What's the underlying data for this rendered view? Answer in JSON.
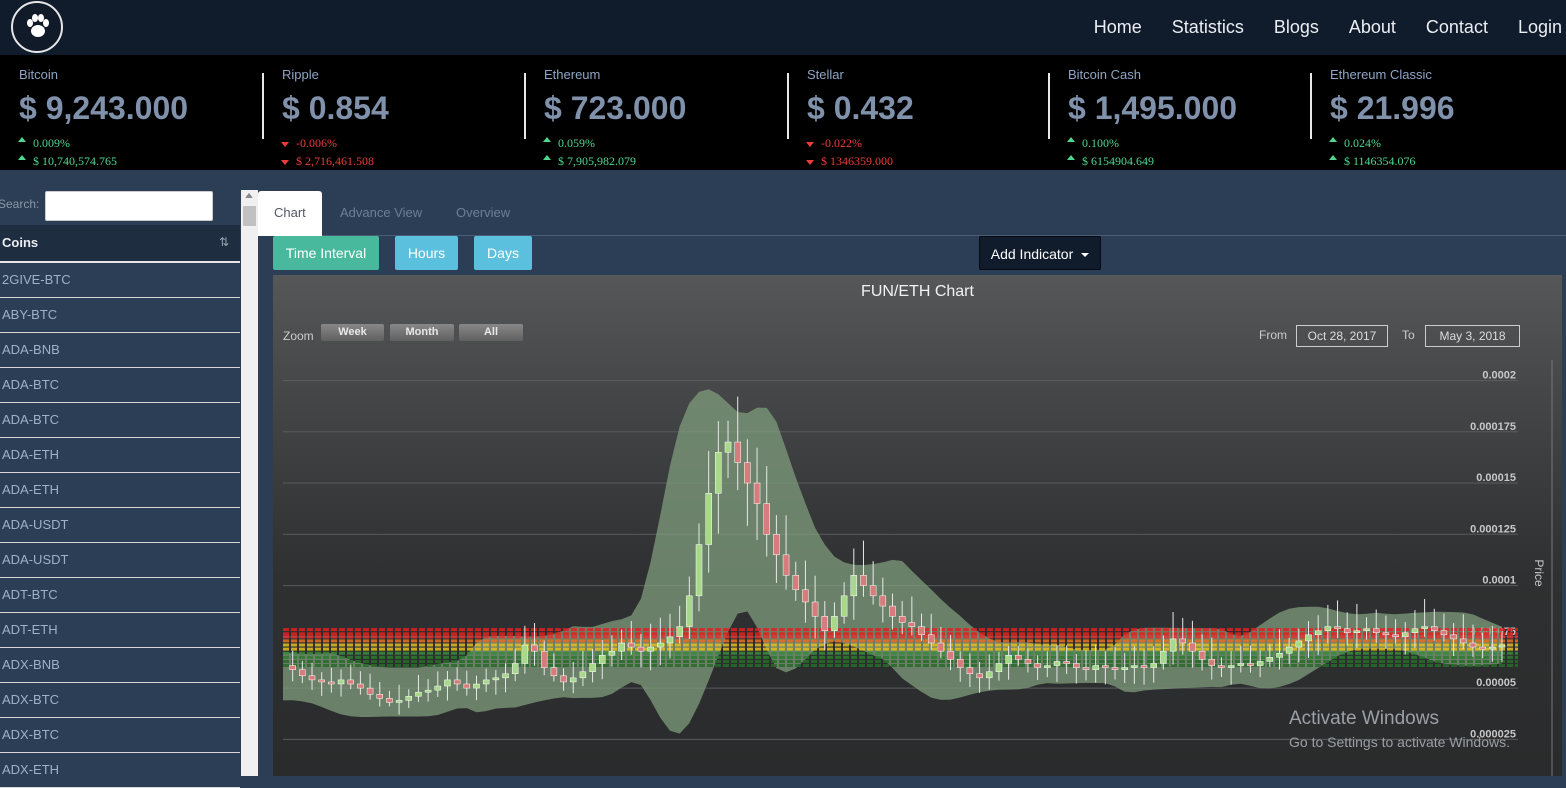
{
  "nav": {
    "links": [
      "Home",
      "Statistics",
      "Blogs",
      "About",
      "Contact",
      "Login"
    ]
  },
  "ticker": [
    {
      "name": "Bitcoin",
      "price": "$ 9,243.000",
      "change": "0.009%",
      "change_dir": "up",
      "volume": "$ 10,740,574.765",
      "volume_dir": "up"
    },
    {
      "name": "Ripple",
      "price": "$ 0.854",
      "change": "-0.006%",
      "change_dir": "down",
      "volume": "$ 2,716,461.508",
      "volume_dir": "down"
    },
    {
      "name": "Ethereum",
      "price": "$ 723.000",
      "change": "0.059%",
      "change_dir": "up",
      "volume": "$ 7,905,982.079",
      "volume_dir": "up"
    },
    {
      "name": "Stellar",
      "price": "$ 0.432",
      "change": "-0.022%",
      "change_dir": "down",
      "volume": "$ 1346359.000",
      "volume_dir": "down"
    },
    {
      "name": "Bitcoin Cash",
      "price": "$ 1,495.000",
      "change": "0.100%",
      "change_dir": "up",
      "volume": "$ 6154904.649",
      "volume_dir": "up"
    },
    {
      "name": "Ethereum Classic",
      "price": "$ 21.996",
      "change": "0.024%",
      "change_dir": "up",
      "volume": "$ 1146354.076",
      "volume_dir": "up"
    }
  ],
  "sidebar": {
    "search_label": "Search:",
    "search_value": "",
    "coins_header": "Coins",
    "coins": [
      "2GIVE-BTC",
      "ABY-BTC",
      "ADA-BNB",
      "ADA-BTC",
      "ADA-BTC",
      "ADA-ETH",
      "ADA-ETH",
      "ADA-USDT",
      "ADA-USDT",
      "ADT-BTC",
      "ADT-ETH",
      "ADX-BNB",
      "ADX-BTC",
      "ADX-BTC",
      "ADX-ETH"
    ]
  },
  "tabs": [
    "Chart",
    "Advance View",
    "Overview"
  ],
  "buttons": {
    "time_interval": "Time Interval",
    "hours": "Hours",
    "days": "Days",
    "add_indicator": "Add Indicator"
  },
  "chart": {
    "zoom_label": "Zoom",
    "zoom_buttons": [
      "Week",
      "Month",
      "All"
    ],
    "from_label": "From",
    "from_date": "Oct 28, 2017",
    "to_label": "To",
    "to_date": "May 3, 2018"
  },
  "chart_data": {
    "type": "candlestick",
    "title": "FUN/ETH Chart",
    "ylabel": "Price",
    "y_ticks": [
      "0.000025",
      "0.00005",
      "0.000075",
      "0.0001",
      "0.000125",
      "0.00015",
      "0.000175",
      "0.0002"
    ],
    "ylim": [
      1.25e-05,
      0.00021
    ],
    "x_range": [
      "Oct 28, 2017",
      "May 3, 2018"
    ],
    "close_series": [
      6.1e-05,
      5.9e-05,
      5.6e-05,
      5.4e-05,
      5.3e-05,
      5.2e-05,
      5.4e-05,
      5.2e-05,
      5e-05,
      4.7e-05,
      4.5e-05,
      4.3e-05,
      4.4e-05,
      4.6e-05,
      4.8e-05,
      4.9e-05,
      5.1e-05,
      5.4e-05,
      5.2e-05,
      5e-05,
      5.2e-05,
      5.4e-05,
      5.5e-05,
      5.7e-05,
      6.2e-05,
      7.1e-05,
      6.8e-05,
      6e-05,
      5.6e-05,
      5.3e-05,
      5.5e-05,
      5.8e-05,
      6.2e-05,
      6.6e-05,
      6.8e-05,
      7.2e-05,
      7e-05,
      6.8e-05,
      7e-05,
      7.2e-05,
      7.5e-05,
      8e-05,
      9.5e-05,
      0.00012,
      0.000145,
      0.000165,
      0.00017,
      0.00016,
      0.00015,
      0.00014,
      0.000125,
      0.000115,
      0.000105,
      9.8e-05,
      9.2e-05,
      8.5e-05,
      7.8e-05,
      8.5e-05,
      9.5e-05,
      0.000105,
      0.0001,
      9.5e-05,
      9e-05,
      8.5e-05,
      8.2e-05,
      8e-05,
      7.6e-05,
      7.2e-05,
      6.8e-05,
      6.4e-05,
      6e-05,
      5.7e-05,
      5.5e-05,
      5.8e-05,
      6.2e-05,
      6.6e-05,
      6.4e-05,
      6.2e-05,
      6e-05,
      6.1e-05,
      6.3e-05,
      6.2e-05,
      6e-05,
      5.9e-05,
      6.1e-05,
      6e-05,
      5.9e-05,
      6e-05,
      6.1e-05,
      6e-05,
      6.2e-05,
      6.8e-05,
      7.4e-05,
      7.2e-05,
      6.8e-05,
      6.4e-05,
      6.1e-05,
      6e-05,
      6.1e-05,
      6.2e-05,
      6.1e-05,
      6.3e-05,
      6.5e-05,
      6.7e-05,
      7e-05,
      7.3e-05,
      7.6e-05,
      7.8e-05,
      8e-05,
      7.9e-05,
      7.7e-05,
      7.8e-05,
      7.9e-05,
      7.7e-05,
      7.6e-05,
      7.5e-05,
      7.7e-05,
      7.9e-05,
      8e-05,
      7.8e-05,
      7.6e-05,
      7.4e-05,
      7.2e-05,
      7e-05,
      6.9e-05,
      7e-05,
      7.1e-05
    ]
  },
  "watermark": {
    "line1": "Activate Windows",
    "line2": "Go to Settings to activate Windows."
  },
  "colors": {
    "navbar": "#101b2c",
    "ticker_bg": "#000000",
    "up": "#4fd68f",
    "down": "#ec3b3b",
    "accent_teal": "#48b99c",
    "accent_blue": "#5bc0de"
  }
}
